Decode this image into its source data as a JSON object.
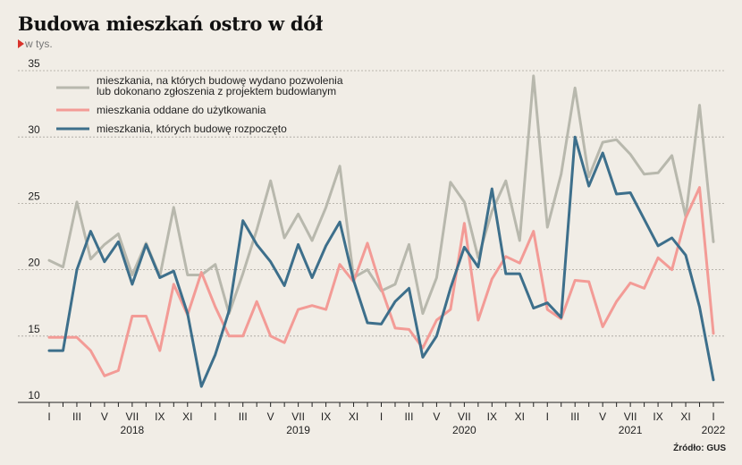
{
  "header": {
    "title": "Budowa mieszkań ostro w dół",
    "unit": "w tys."
  },
  "source": "Źródło: GUS",
  "chart_data": {
    "type": "line",
    "ylim": [
      10,
      35
    ],
    "yticks": [
      10,
      15,
      20,
      25,
      30,
      35
    ],
    "grid": true,
    "legend_position": "top-left",
    "x_month_labels": [
      "I",
      "III",
      "V",
      "VII",
      "IX",
      "XI",
      "I",
      "III",
      "V",
      "VII",
      "IX",
      "XI",
      "I",
      "III",
      "V",
      "VII",
      "IX",
      "XI",
      "I",
      "III",
      "V",
      "VII",
      "IX",
      "XI",
      "I"
    ],
    "x_month_label_indices": [
      0,
      2,
      4,
      6,
      8,
      10,
      12,
      14,
      16,
      18,
      20,
      22,
      24,
      26,
      28,
      30,
      32,
      34,
      36,
      38,
      40,
      42,
      44,
      46,
      48
    ],
    "x_year_labels": [
      "2018",
      "2019",
      "2020",
      "2021",
      "2022"
    ],
    "x_year_label_indices": [
      6,
      18,
      30,
      42,
      48
    ],
    "series": [
      {
        "name": "mieszkania, na których budowę wydano pozwolenia lub dokonano zgłoszenia z projektem budowlanym",
        "legend_lines": [
          "mieszkania, na których budowę wydano pozwolenia",
          "lub dokonano zgłoszenia z projektem budowlanym"
        ],
        "color": "#b8b8ad",
        "values": [
          20.7,
          20.2,
          25.1,
          20.8,
          21.9,
          22.7,
          19.6,
          22.0,
          19.5,
          24.7,
          19.6,
          19.6,
          20.4,
          16.7,
          19.7,
          23.0,
          26.7,
          22.4,
          24.2,
          22.2,
          24.7,
          27.8,
          19.4,
          20.0,
          18.4,
          18.9,
          21.9,
          16.7,
          19.4,
          26.6,
          25.1,
          20.9,
          24.4,
          26.7,
          22.2,
          34.6,
          23.2,
          27.2,
          33.7,
          27.0,
          29.6,
          29.8,
          28.7,
          27.2,
          27.3,
          28.6,
          24.0,
          32.4,
          22.1
        ]
      },
      {
        "name": "mieszkania oddane do użytkowania",
        "legend_lines": [
          "mieszkania oddane do użytkowania"
        ],
        "color": "#f39b96",
        "values": [
          14.9,
          14.9,
          14.9,
          13.9,
          12.0,
          12.4,
          16.5,
          16.5,
          13.9,
          18.9,
          16.6,
          19.8,
          17.2,
          15.0,
          15.0,
          17.6,
          15.0,
          14.5,
          17.0,
          17.3,
          17.0,
          20.4,
          19.1,
          22.0,
          18.6,
          15.6,
          15.5,
          14.1,
          16.2,
          17.0,
          23.5,
          16.2,
          19.3,
          21.0,
          20.5,
          22.9,
          17.0,
          16.3,
          19.2,
          19.1,
          15.7,
          17.6,
          19.0,
          18.6,
          20.9,
          20.0,
          23.9,
          26.2,
          15.2
        ]
      },
      {
        "name": "mieszkania, których budowę rozpoczęto",
        "legend_lines": [
          "mieszkania, których budowę rozpoczęto"
        ],
        "color": "#3d6f8b",
        "values": [
          13.9,
          13.9,
          20.0,
          22.9,
          20.6,
          22.1,
          18.9,
          21.9,
          19.4,
          19.9,
          16.7,
          11.2,
          13.6,
          16.9,
          23.7,
          21.9,
          20.6,
          18.8,
          21.9,
          19.4,
          21.8,
          23.6,
          19.2,
          16.0,
          15.9,
          17.6,
          18.6,
          13.4,
          15.0,
          18.6,
          21.7,
          20.2,
          26.1,
          19.7,
          19.7,
          17.1,
          17.5,
          16.4,
          30.0,
          26.3,
          28.8,
          25.7,
          25.8,
          23.8,
          21.8,
          22.4,
          21.1,
          17.2,
          11.7
        ]
      }
    ]
  }
}
